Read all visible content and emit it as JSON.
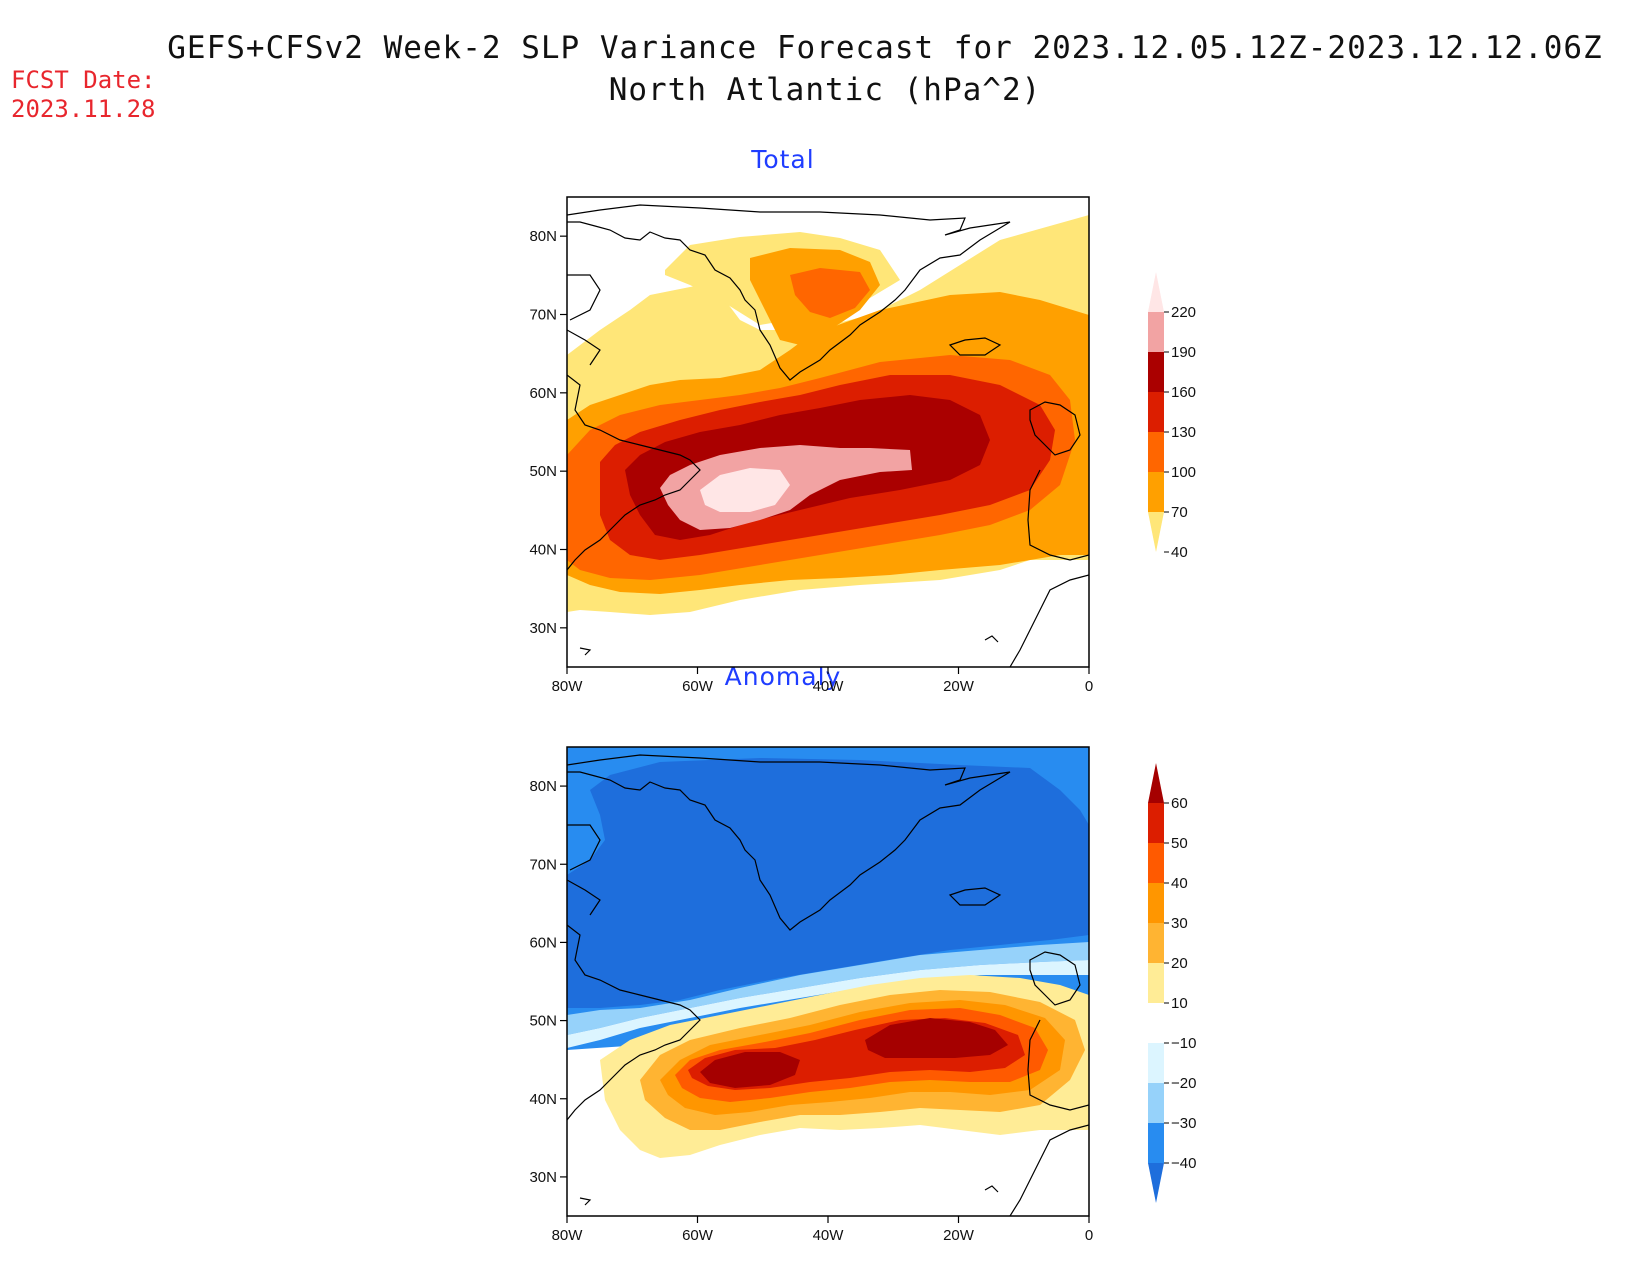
{
  "title": {
    "line1": "GEFS+CFSv2 Week-2 SLP Variance Forecast for 2023.12.05.12Z-2023.12.12.06Z",
    "line2": "North Atlantic (hPa^2)"
  },
  "forecast": {
    "label": "FCST Date:",
    "date": "2023.11.28"
  },
  "panels": [
    {
      "title": "Total",
      "lat_ticks": [
        "80N",
        "70N",
        "60N",
        "50N",
        "40N",
        "30N"
      ],
      "lon_ticks": [
        "80W",
        "60W",
        "40W",
        "20W",
        "0"
      ],
      "colorbar": {
        "labels": [
          "220",
          "190",
          "160",
          "130",
          "100",
          "70",
          "40"
        ],
        "colors": [
          "#ffe6e6",
          "#f2a3a3",
          "#aa0000",
          "#dc1e00",
          "#ff6600",
          "#ffa000",
          "#ffe678"
        ]
      }
    },
    {
      "title": "Anomaly",
      "lat_ticks": [
        "80N",
        "70N",
        "60N",
        "50N",
        "40N",
        "30N"
      ],
      "lon_ticks": [
        "80W",
        "60W",
        "40W",
        "20W",
        "0"
      ],
      "colorbar": {
        "labels": [
          "60",
          "50",
          "40",
          "30",
          "20",
          "10",
          "−10",
          "−20",
          "−30",
          "−40"
        ],
        "colors": [
          "#a50000",
          "#dc1e00",
          "#ff5a00",
          "#ff9600",
          "#ffb432",
          "#ffec96",
          "#ffffff",
          "#dcf5ff",
          "#96d2fa",
          "#288cf0",
          "#1e6edc"
        ]
      }
    }
  ]
}
